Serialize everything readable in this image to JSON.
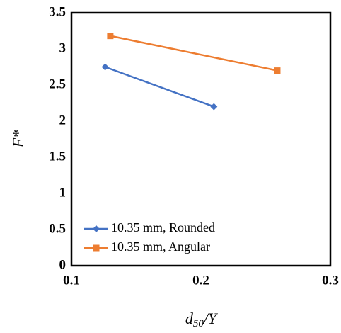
{
  "chart_data": {
    "type": "line",
    "x_label": [
      "d",
      "50",
      "/Y"
    ],
    "y_label": "F*",
    "series": [
      {
        "name": "10.35 mm, Rounded",
        "color": "#4472c4",
        "marker": "diamond",
        "x": [
          0.126,
          0.21
        ],
        "values": [
          2.75,
          2.2
        ]
      },
      {
        "name": "10.35 mm, Angular",
        "color": "#ed7d31",
        "marker": "square",
        "x": [
          0.13,
          0.259
        ],
        "values": [
          3.18,
          2.7
        ]
      }
    ],
    "xlim": [
      0.1,
      0.3
    ],
    "xticks": [
      0.1,
      0.2,
      0.3
    ],
    "ylim": [
      0,
      3.5
    ],
    "yticks": [
      0,
      0.5,
      1,
      1.5,
      2,
      2.5,
      3,
      3.5
    ],
    "grid": false,
    "legend": "lower left"
  }
}
